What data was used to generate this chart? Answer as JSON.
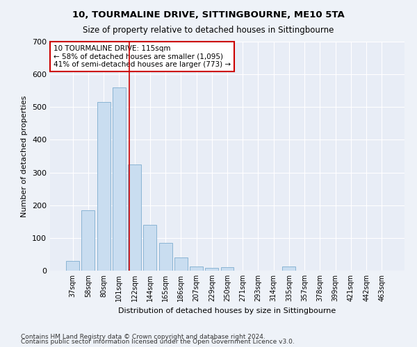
{
  "title": "10, TOURMALINE DRIVE, SITTINGBOURNE, ME10 5TA",
  "subtitle": "Size of property relative to detached houses in Sittingbourne",
  "xlabel": "Distribution of detached houses by size in Sittingbourne",
  "ylabel": "Number of detached properties",
  "footnote1": "Contains HM Land Registry data © Crown copyright and database right 2024.",
  "footnote2": "Contains public sector information licensed under the Open Government Licence v3.0.",
  "categories": [
    "37sqm",
    "58sqm",
    "80sqm",
    "101sqm",
    "122sqm",
    "144sqm",
    "165sqm",
    "186sqm",
    "207sqm",
    "229sqm",
    "250sqm",
    "271sqm",
    "293sqm",
    "314sqm",
    "335sqm",
    "357sqm",
    "378sqm",
    "399sqm",
    "421sqm",
    "442sqm",
    "463sqm"
  ],
  "values": [
    30,
    185,
    515,
    560,
    325,
    140,
    85,
    40,
    12,
    8,
    10,
    0,
    0,
    0,
    12,
    0,
    0,
    0,
    0,
    0,
    0
  ],
  "bar_color": "#c9ddf0",
  "bar_edge_color": "#8ab4d4",
  "background_color": "#eef2f8",
  "plot_background": "#e8edf6",
  "grid_color": "#ffffff",
  "vline_color": "#cc0000",
  "vline_pos": 3.67,
  "annotation_text": "10 TOURMALINE DRIVE: 115sqm\n← 58% of detached houses are smaller (1,095)\n41% of semi-detached houses are larger (773) →",
  "annotation_box_color": "#ffffff",
  "annotation_box_edge": "#cc0000",
  "ylim": [
    0,
    700
  ],
  "yticks": [
    0,
    100,
    200,
    300,
    400,
    500,
    600,
    700
  ]
}
